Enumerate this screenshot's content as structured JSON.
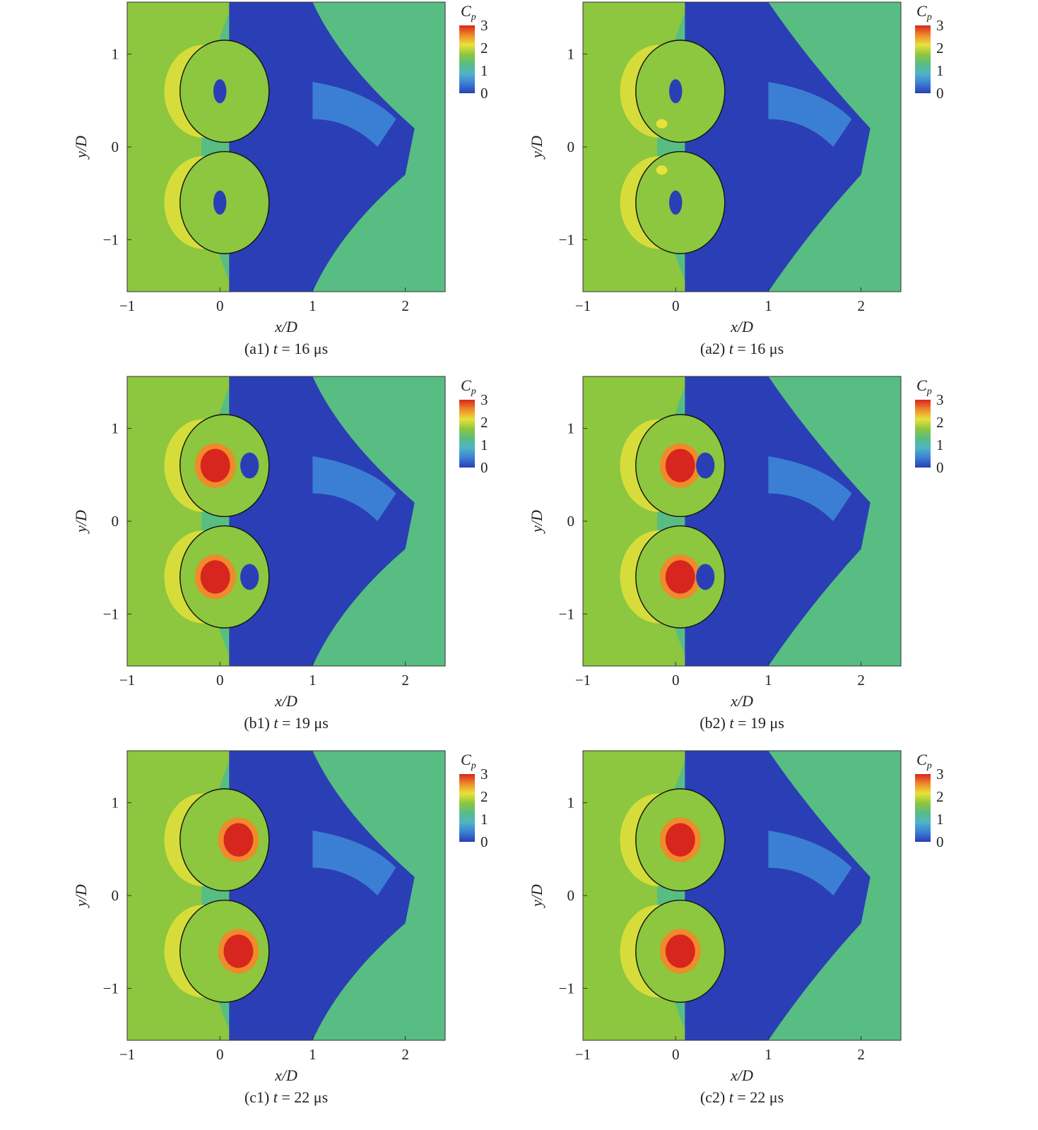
{
  "figure": {
    "panels": [
      {
        "id": "a1",
        "caption": "(a1) t = 16 μs",
        "caption_prefix": "(a1) ",
        "caption_t": "t",
        "caption_rest": " = 16 μs",
        "variant": 1,
        "inner_peak": 1.8
      },
      {
        "id": "a2",
        "caption": "(a2) t = 16 μs",
        "caption_prefix": "(a2) ",
        "caption_t": "t",
        "caption_rest": " = 16 μs",
        "variant": 2,
        "inner_peak": 2.2
      },
      {
        "id": "b1",
        "caption": "(b1) t = 19 μs",
        "caption_prefix": "(b1) ",
        "caption_t": "t",
        "caption_rest": " = 19 μs",
        "variant": 1,
        "inner_peak": 3.2
      },
      {
        "id": "b2",
        "caption": "(b2) t = 19 μs",
        "caption_prefix": "(b2) ",
        "caption_t": "t",
        "caption_rest": " = 19 μs",
        "variant": 2,
        "inner_peak": 3.1
      },
      {
        "id": "c1",
        "caption": "(c1) t = 22 μs",
        "caption_prefix": "(c1) ",
        "caption_t": "t",
        "caption_rest": " = 22 μs",
        "variant": 1,
        "inner_peak": 3.2
      },
      {
        "id": "c2",
        "caption": "(c2) t = 22 μs",
        "caption_prefix": "(c2) ",
        "caption_t": "t",
        "caption_rest": " = 22 μs",
        "variant": 2,
        "inner_peak": 3.0
      }
    ]
  },
  "chart_data": {
    "type": "heatmap",
    "variable": "C_p",
    "colorbar_label": "Cp",
    "colorbar_ticks": [
      3,
      2,
      1,
      0
    ],
    "colorbar_range": [
      0,
      3
    ],
    "colormap": [
      "#2a3fb5",
      "#3b7fd4",
      "#4fb3c8",
      "#58bd82",
      "#8dc63f",
      "#e8e23a",
      "#f08a2a",
      "#d7261e"
    ],
    "xlabel": "x/D",
    "ylabel": "y/D",
    "xlim": [
      -1,
      2.43
    ],
    "ylim": [
      -1.56,
      1.56
    ],
    "xticks": [
      -1,
      0,
      1,
      2
    ],
    "yticks": [
      1,
      0,
      -1
    ],
    "xtick_labels": [
      "−1",
      "0",
      "1",
      "2"
    ],
    "ytick_labels": [
      "1",
      "0",
      "−1"
    ],
    "bubbles": [
      {
        "center_y": 0.6
      },
      {
        "center_y": -0.6
      }
    ]
  }
}
